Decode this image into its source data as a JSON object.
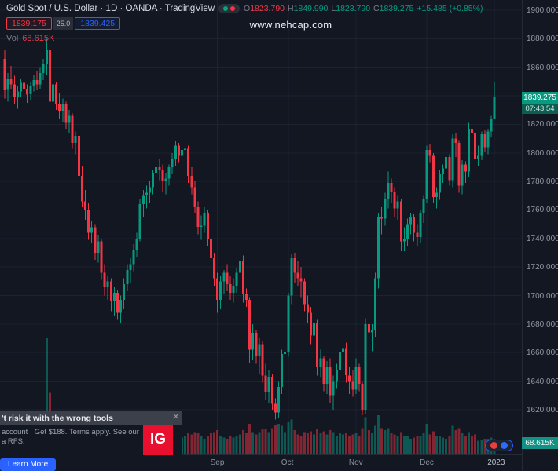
{
  "header": {
    "title": "Gold Spot / U.S. Dollar · 1D · OANDA · TradingView",
    "ohlc": {
      "o_label": "O",
      "o": "1823.790",
      "h_label": "H",
      "h": "1849.990",
      "l_label": "L",
      "l": "1823.790",
      "c_label": "C",
      "c": "1839.275",
      "change": "+15.485 (+0.85%)"
    },
    "trade_widget": {
      "sell": "1839.175",
      "spread": "25.0",
      "buy": "1839.425"
    },
    "volume_row": {
      "label": "Vol",
      "value": "68.615K"
    }
  },
  "watermark": "www.nehcap.com",
  "price_axis": {
    "last_price_label": "1839.275",
    "countdown": "07:43:54",
    "volume_label": "68.615K"
  },
  "ad_banner": {
    "headline": "'t risk it with the wrong tools",
    "line1": "account · Get $188. Terms apply. See our",
    "line2": "a RFS.",
    "logo_text": "IG",
    "cta": "Learn More",
    "close_icon": "✕"
  },
  "colors": {
    "up": "#089981",
    "down": "#f23645",
    "buy": "#2962ff",
    "sell": "#f23645",
    "badge": "#089981"
  },
  "chart_data": {
    "type": "candlestick",
    "title": "Gold Spot / U.S. Dollar",
    "exchange": "OANDA",
    "interval": "1D",
    "price_ticks": [
      1900,
      1880,
      1860,
      1840,
      1820,
      1800,
      1780,
      1760,
      1740,
      1720,
      1700,
      1680,
      1660,
      1640,
      1620
    ],
    "time_labels": [
      {
        "text": "Sep",
        "index": 66
      },
      {
        "text": "Oct",
        "index": 88
      },
      {
        "text": "Nov",
        "index": 109
      },
      {
        "text": "Dec",
        "index": 131
      },
      {
        "text": "2023",
        "index": 152,
        "year": true
      }
    ],
    "columns": [
      "open",
      "high",
      "low",
      "close",
      "volume_k"
    ],
    "candles": [
      [
        1866,
        1872,
        1838,
        1844,
        95
      ],
      [
        1844,
        1856,
        1836,
        1852,
        80
      ],
      [
        1852,
        1861,
        1845,
        1848,
        70
      ],
      [
        1848,
        1854,
        1834,
        1839,
        85
      ],
      [
        1839,
        1847,
        1831,
        1843,
        75
      ],
      [
        1843,
        1852,
        1839,
        1849,
        65
      ],
      [
        1849,
        1853,
        1840,
        1845,
        60
      ],
      [
        1845,
        1848,
        1835,
        1841,
        70
      ],
      [
        1841,
        1850,
        1837,
        1847,
        75
      ],
      [
        1847,
        1855,
        1843,
        1851,
        80
      ],
      [
        1851,
        1857,
        1844,
        1848,
        70
      ],
      [
        1848,
        1860,
        1845,
        1856,
        85
      ],
      [
        1856,
        1866,
        1851,
        1862,
        95
      ],
      [
        1862,
        1880,
        1855,
        1872,
        540
      ],
      [
        1872,
        1876,
        1830,
        1836,
        285
      ],
      [
        1836,
        1853,
        1829,
        1848,
        150
      ],
      [
        1848,
        1850,
        1830,
        1834,
        100
      ],
      [
        1834,
        1842,
        1824,
        1829,
        90
      ],
      [
        1829,
        1838,
        1822,
        1834,
        75
      ],
      [
        1834,
        1836,
        1817,
        1821,
        80
      ],
      [
        1821,
        1830,
        1814,
        1826,
        70
      ],
      [
        1826,
        1828,
        1803,
        1807,
        95
      ],
      [
        1807,
        1815,
        1799,
        1812,
        70
      ],
      [
        1812,
        1814,
        1779,
        1784,
        135
      ],
      [
        1784,
        1791,
        1762,
        1766,
        120
      ],
      [
        1766,
        1774,
        1753,
        1760,
        100
      ],
      [
        1760,
        1765,
        1739,
        1744,
        110
      ],
      [
        1744,
        1752,
        1737,
        1748,
        85
      ],
      [
        1748,
        1750,
        1725,
        1730,
        105
      ],
      [
        1730,
        1742,
        1723,
        1738,
        80
      ],
      [
        1738,
        1740,
        1711,
        1716,
        110
      ],
      [
        1716,
        1722,
        1700,
        1706,
        120
      ],
      [
        1706,
        1714,
        1697,
        1710,
        95
      ],
      [
        1710,
        1712,
        1689,
        1696,
        115
      ],
      [
        1696,
        1706,
        1686,
        1702,
        100
      ],
      [
        1702,
        1704,
        1683,
        1688,
        110
      ],
      [
        1688,
        1700,
        1681,
        1697,
        125
      ],
      [
        1697,
        1712,
        1691,
        1708,
        95
      ],
      [
        1708,
        1722,
        1703,
        1718,
        90
      ],
      [
        1718,
        1726,
        1709,
        1722,
        80
      ],
      [
        1722,
        1736,
        1717,
        1732,
        85
      ],
      [
        1732,
        1744,
        1727,
        1740,
        90
      ],
      [
        1740,
        1768,
        1738,
        1764,
        130
      ],
      [
        1764,
        1774,
        1755,
        1770,
        90
      ],
      [
        1770,
        1777,
        1761,
        1772,
        75
      ],
      [
        1772,
        1780,
        1765,
        1776,
        70
      ],
      [
        1776,
        1788,
        1771,
        1786,
        95
      ],
      [
        1786,
        1794,
        1779,
        1790,
        85
      ],
      [
        1790,
        1796,
        1781,
        1788,
        70
      ],
      [
        1788,
        1792,
        1773,
        1780,
        75
      ],
      [
        1780,
        1786,
        1771,
        1782,
        65
      ],
      [
        1782,
        1792,
        1777,
        1790,
        70
      ],
      [
        1790,
        1800,
        1785,
        1796,
        85
      ],
      [
        1796,
        1808,
        1791,
        1805,
        95
      ],
      [
        1805,
        1807,
        1793,
        1798,
        80
      ],
      [
        1798,
        1806,
        1791,
        1802,
        75
      ],
      [
        1802,
        1810,
        1797,
        1803,
        85
      ],
      [
        1803,
        1805,
        1779,
        1784,
        95
      ],
      [
        1784,
        1790,
        1771,
        1776,
        90
      ],
      [
        1776,
        1780,
        1758,
        1762,
        100
      ],
      [
        1762,
        1766,
        1743,
        1748,
        95
      ],
      [
        1748,
        1756,
        1739,
        1749,
        80
      ],
      [
        1749,
        1762,
        1744,
        1758,
        70
      ],
      [
        1758,
        1760,
        1735,
        1740,
        85
      ],
      [
        1740,
        1744,
        1721,
        1726,
        95
      ],
      [
        1726,
        1730,
        1707,
        1712,
        100
      ],
      [
        1712,
        1716,
        1688,
        1697,
        110
      ],
      [
        1697,
        1714,
        1691,
        1710,
        85
      ],
      [
        1710,
        1718,
        1701,
        1716,
        75
      ],
      [
        1716,
        1722,
        1703,
        1708,
        70
      ],
      [
        1708,
        1714,
        1697,
        1702,
        80
      ],
      [
        1702,
        1712,
        1695,
        1707,
        75
      ],
      [
        1707,
        1719,
        1702,
        1716,
        85
      ],
      [
        1716,
        1727,
        1711,
        1724,
        90
      ],
      [
        1724,
        1728,
        1695,
        1701,
        110
      ],
      [
        1701,
        1705,
        1692,
        1697,
        95
      ],
      [
        1697,
        1699,
        1653,
        1662,
        140
      ],
      [
        1662,
        1680,
        1655,
        1674,
        100
      ],
      [
        1674,
        1676,
        1652,
        1658,
        90
      ],
      [
        1658,
        1670,
        1645,
        1666,
        100
      ],
      [
        1666,
        1668,
        1639,
        1644,
        115
      ],
      [
        1644,
        1652,
        1627,
        1632,
        115
      ],
      [
        1632,
        1648,
        1625,
        1643,
        100
      ],
      [
        1643,
        1645,
        1620,
        1624,
        120
      ],
      [
        1624,
        1628,
        1613,
        1618,
        135
      ],
      [
        1618,
        1640,
        1614,
        1636,
        140
      ],
      [
        1636,
        1662,
        1631,
        1659,
        130
      ],
      [
        1659,
        1672,
        1649,
        1660,
        100
      ],
      [
        1660,
        1702,
        1657,
        1700,
        150
      ],
      [
        1700,
        1729,
        1694,
        1726,
        160
      ],
      [
        1726,
        1730,
        1709,
        1716,
        110
      ],
      [
        1716,
        1724,
        1707,
        1712,
        90
      ],
      [
        1712,
        1720,
        1699,
        1710,
        85
      ],
      [
        1710,
        1712,
        1689,
        1694,
        100
      ],
      [
        1694,
        1700,
        1681,
        1688,
        95
      ],
      [
        1688,
        1692,
        1666,
        1672,
        105
      ],
      [
        1672,
        1686,
        1663,
        1681,
        90
      ],
      [
        1681,
        1683,
        1644,
        1650,
        115
      ],
      [
        1650,
        1662,
        1643,
        1656,
        95
      ],
      [
        1656,
        1658,
        1633,
        1638,
        105
      ],
      [
        1638,
        1654,
        1631,
        1650,
        90
      ],
      [
        1650,
        1656,
        1625,
        1630,
        110
      ],
      [
        1630,
        1644,
        1620,
        1640,
        100
      ],
      [
        1640,
        1652,
        1635,
        1648,
        85
      ],
      [
        1648,
        1664,
        1643,
        1660,
        95
      ],
      [
        1660,
        1670,
        1651,
        1663,
        90
      ],
      [
        1663,
        1667,
        1639,
        1644,
        95
      ],
      [
        1644,
        1650,
        1631,
        1640,
        85
      ],
      [
        1640,
        1648,
        1629,
        1634,
        90
      ],
      [
        1634,
        1656,
        1631,
        1650,
        95
      ],
      [
        1650,
        1652,
        1633,
        1638,
        85
      ],
      [
        1638,
        1640,
        1616,
        1620,
        120
      ],
      [
        1620,
        1684,
        1617,
        1680,
        170
      ],
      [
        1680,
        1685,
        1665,
        1674,
        110
      ],
      [
        1674,
        1680,
        1661,
        1676,
        95
      ],
      [
        1676,
        1716,
        1671,
        1712,
        130
      ],
      [
        1712,
        1758,
        1705,
        1755,
        180
      ],
      [
        1755,
        1762,
        1743,
        1754,
        120
      ],
      [
        1754,
        1772,
        1749,
        1768,
        110
      ],
      [
        1768,
        1787,
        1761,
        1779,
        120
      ],
      [
        1779,
        1782,
        1765,
        1773,
        95
      ],
      [
        1773,
        1776,
        1755,
        1761,
        90
      ],
      [
        1761,
        1770,
        1753,
        1766,
        80
      ],
      [
        1766,
        1768,
        1731,
        1738,
        100
      ],
      [
        1738,
        1748,
        1731,
        1740,
        85
      ],
      [
        1740,
        1754,
        1735,
        1750,
        80
      ],
      [
        1750,
        1758,
        1743,
        1755,
        70
      ],
      [
        1755,
        1757,
        1738,
        1744,
        75
      ],
      [
        1744,
        1750,
        1735,
        1741,
        80
      ],
      [
        1741,
        1760,
        1737,
        1758,
        85
      ],
      [
        1758,
        1770,
        1751,
        1768,
        95
      ],
      [
        1768,
        1805,
        1765,
        1802,
        140
      ],
      [
        1802,
        1806,
        1793,
        1798,
        90
      ],
      [
        1798,
        1800,
        1765,
        1769,
        105
      ],
      [
        1769,
        1776,
        1761,
        1772,
        85
      ],
      [
        1772,
        1788,
        1767,
        1785,
        80
      ],
      [
        1785,
        1792,
        1779,
        1789,
        75
      ],
      [
        1789,
        1799,
        1783,
        1797,
        70
      ],
      [
        1797,
        1799,
        1777,
        1781,
        85
      ],
      [
        1781,
        1813,
        1776,
        1810,
        130
      ],
      [
        1810,
        1814,
        1797,
        1807,
        110
      ],
      [
        1807,
        1809,
        1772,
        1777,
        120
      ],
      [
        1777,
        1795,
        1771,
        1792,
        95
      ],
      [
        1792,
        1794,
        1779,
        1787,
        80
      ],
      [
        1787,
        1821,
        1783,
        1817,
        100
      ],
      [
        1817,
        1823,
        1809,
        1814,
        85
      ],
      [
        1814,
        1816,
        1791,
        1796,
        90
      ],
      [
        1796,
        1805,
        1791,
        1798,
        60
      ],
      [
        1798,
        1815,
        1795,
        1813,
        65
      ],
      [
        1813,
        1816,
        1801,
        1804,
        70
      ],
      [
        1804,
        1817,
        1799,
        1815,
        70
      ],
      [
        1815,
        1826,
        1811,
        1823.79,
        75
      ],
      [
        1823.79,
        1849.99,
        1823.79,
        1839.275,
        68.615
      ]
    ]
  }
}
